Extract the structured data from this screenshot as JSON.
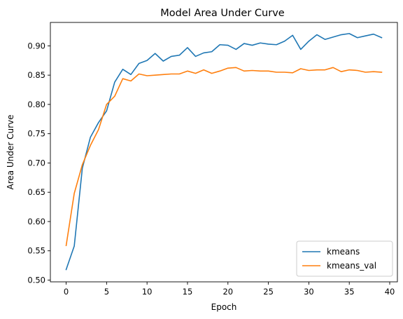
{
  "chart_data": {
    "type": "line",
    "title": "Model Area Under Curve",
    "xlabel": "Epoch",
    "ylabel": "Area Under Curve",
    "xlim": [
      -1.95,
      40.95
    ],
    "ylim": [
      0.497,
      0.94
    ],
    "xticks": [
      0,
      5,
      10,
      15,
      20,
      25,
      30,
      35,
      40
    ],
    "yticks": [
      0.5,
      0.55,
      0.6,
      0.65,
      0.7,
      0.75,
      0.8,
      0.85,
      0.9
    ],
    "ytick_labels": [
      "0.50",
      "0.55",
      "0.60",
      "0.65",
      "0.70",
      "0.75",
      "0.80",
      "0.85",
      "0.90"
    ],
    "grid": false,
    "legend_position": "lower-right",
    "x": [
      0,
      1,
      2,
      3,
      4,
      5,
      6,
      7,
      8,
      9,
      10,
      11,
      12,
      13,
      14,
      15,
      16,
      17,
      18,
      19,
      20,
      21,
      22,
      23,
      24,
      25,
      26,
      27,
      28,
      29,
      30,
      31,
      32,
      33,
      34,
      35,
      36,
      37,
      38,
      39
    ],
    "series": [
      {
        "name": "kmeans",
        "color": "#1f77b4",
        "values": [
          0.518,
          0.558,
          0.691,
          0.744,
          0.769,
          0.789,
          0.838,
          0.86,
          0.851,
          0.87,
          0.875,
          0.887,
          0.874,
          0.882,
          0.884,
          0.897,
          0.882,
          0.888,
          0.89,
          0.902,
          0.901,
          0.894,
          0.904,
          0.901,
          0.905,
          0.903,
          0.902,
          0.908,
          0.918,
          0.894,
          0.908,
          0.919,
          0.911,
          0.915,
          0.919,
          0.921,
          0.914,
          0.917,
          0.92,
          0.914
        ]
      },
      {
        "name": "kmeans_val",
        "color": "#ff7f0e",
        "values": [
          0.559,
          0.648,
          0.697,
          0.73,
          0.757,
          0.8,
          0.814,
          0.844,
          0.84,
          0.852,
          0.849,
          0.85,
          0.851,
          0.852,
          0.852,
          0.857,
          0.853,
          0.859,
          0.853,
          0.857,
          0.862,
          0.863,
          0.857,
          0.858,
          0.857,
          0.857,
          0.855,
          0.855,
          0.854,
          0.861,
          0.858,
          0.859,
          0.859,
          0.863,
          0.856,
          0.859,
          0.858,
          0.855,
          0.856,
          0.855
        ]
      }
    ]
  }
}
